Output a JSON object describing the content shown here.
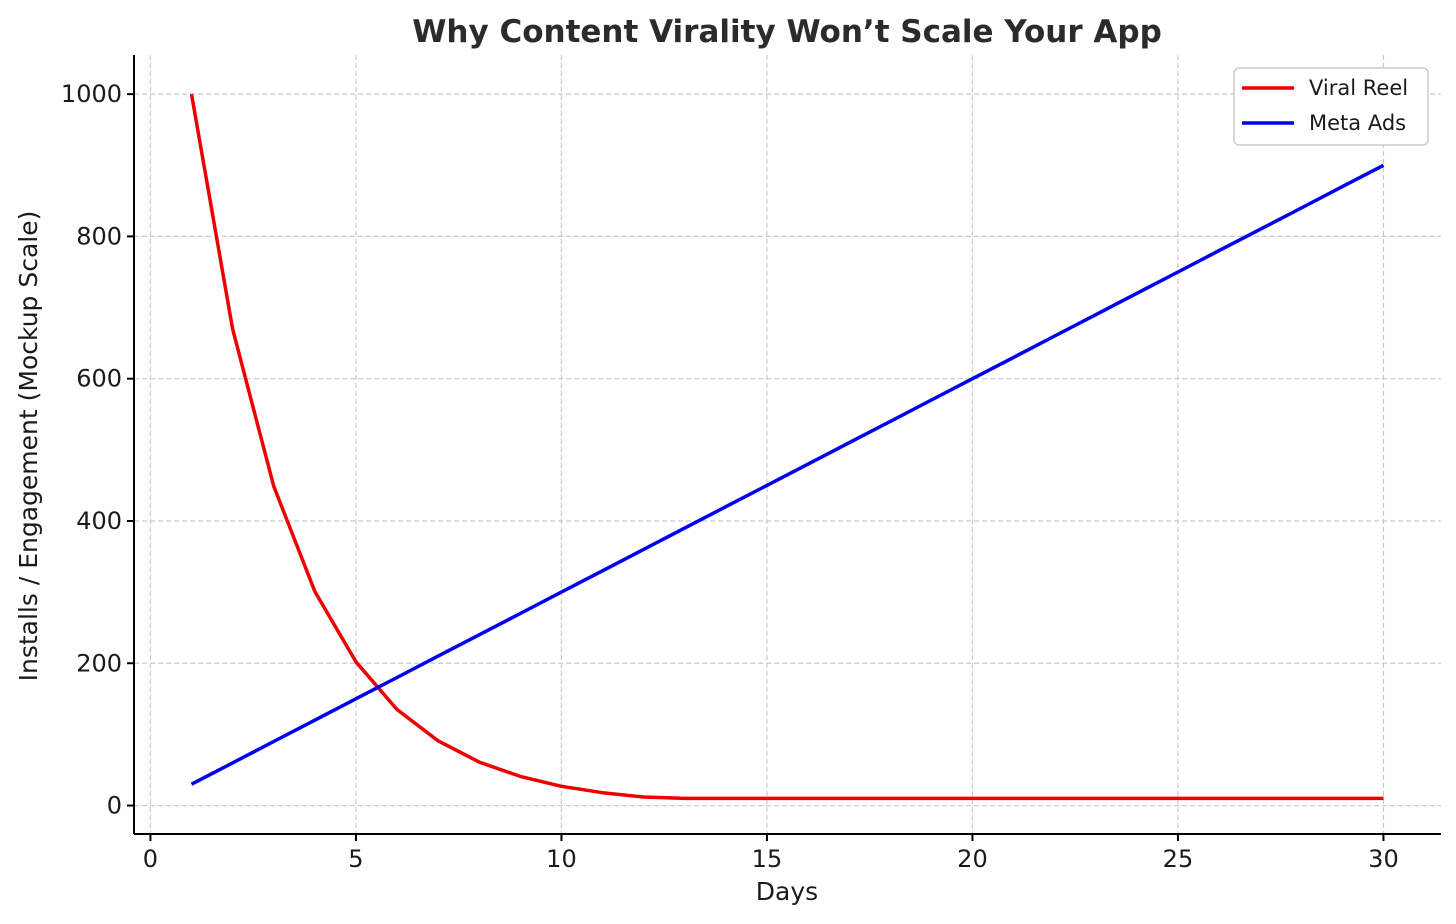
{
  "chart_data": {
    "type": "line",
    "title": "Why Content Virality Won’t Scale Your App",
    "xlabel": "Days",
    "ylabel": "Installs / Engagement (Mockup Scale)",
    "xlim": [
      -0.4,
      31.4
    ],
    "ylim": [
      -40,
      1055
    ],
    "xticks": [
      0,
      5,
      10,
      15,
      20,
      25,
      30
    ],
    "yticks": [
      0,
      200,
      400,
      600,
      800,
      1000
    ],
    "grid": true,
    "legend_position": "top-right",
    "x": [
      1,
      2,
      3,
      4,
      5,
      6,
      7,
      8,
      9,
      10,
      11,
      12,
      13,
      14,
      15,
      16,
      17,
      18,
      19,
      20,
      21,
      22,
      23,
      24,
      25,
      26,
      27,
      28,
      29,
      30
    ],
    "series": [
      {
        "name": "Viral Reel",
        "color": "#ee0000",
        "values": [
          1000,
          670,
          449,
          301,
          202,
          135,
          91,
          61,
          41,
          27,
          18,
          12,
          10,
          10,
          10,
          10,
          10,
          10,
          10,
          10,
          10,
          10,
          10,
          10,
          10,
          10,
          10,
          10,
          10,
          10
        ]
      },
      {
        "name": "Meta Ads",
        "color": "#0000ee",
        "values": [
          30,
          60,
          90,
          120,
          150,
          180,
          210,
          240,
          270,
          300,
          330,
          360,
          390,
          420,
          450,
          480,
          510,
          540,
          570,
          600,
          630,
          660,
          690,
          720,
          750,
          780,
          810,
          840,
          870,
          900
        ]
      }
    ]
  }
}
